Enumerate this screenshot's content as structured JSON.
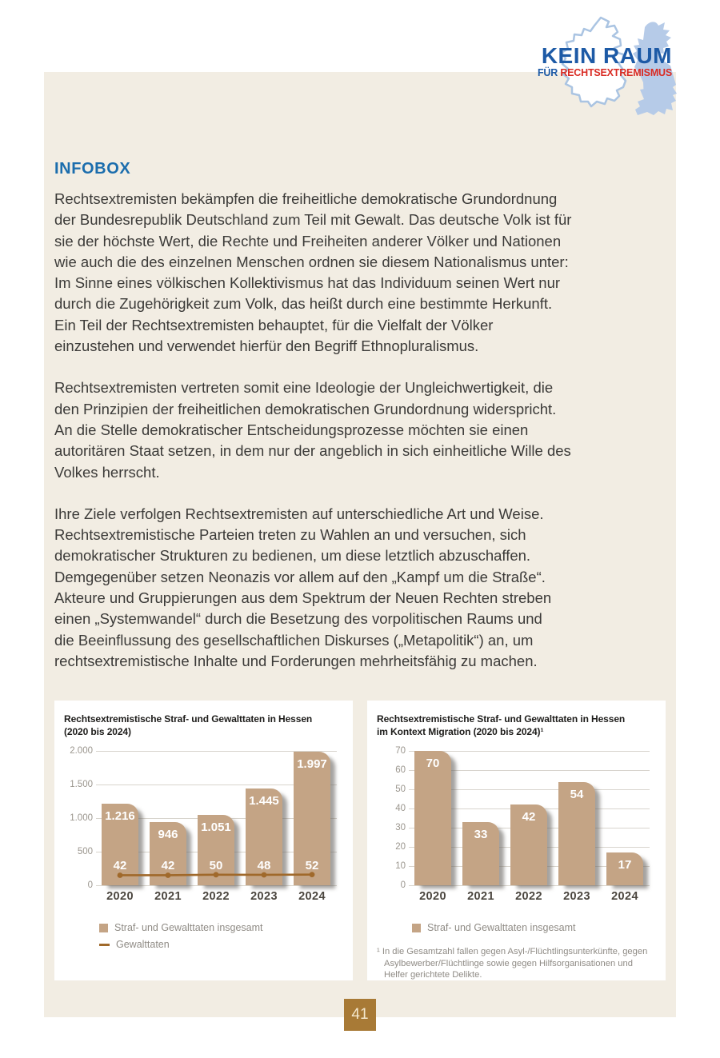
{
  "logo": {
    "line1": "KEIN RAUM",
    "line2_prefix": "FÜR",
    "line2_main": "RECHTSEXTREMISMUS"
  },
  "infobox": {
    "title": "INFOBOX",
    "paragraphs": {
      "p1": "Rechtsextremisten bekämpfen die freiheitliche demokratische Grundordnung\nder Bundesrepublik Deutschland zum Teil mit Gewalt. Das deutsche Volk ist für\nsie der höchste Wert, die Rechte und Freiheiten anderer Völker und Nationen\nwie auch die des einzelnen Menschen ordnen sie diesem Nationalismus unter:\nIm Sinne eines völkischen Kollektivismus hat das Individuum seinen Wert nur\ndurch die Zugehörigkeit zum Volk, das heißt durch eine bestimmte Herkunft.\nEin Teil der Rechtsextremisten behauptet, für die Vielfalt der Völker\neinzustehen und verwendet hierfür den Begriff Ethnopluralismus.",
      "p2": "Rechtsextremisten vertreten somit eine Ideologie der Ungleichwertigkeit, die\nden Prinzipien der freiheitlichen demokratischen Grundordnung widerspricht.\nAn die Stelle demokratischer Entscheidungsprozesse möchten sie einen\nautoritären Staat setzen, in dem nur der angeblich in sich einheitliche Wille des\nVolkes herrscht.",
      "p3": "Ihre Ziele verfolgen Rechtsextremisten auf unterschiedliche Art und Weise.\nRechtsextremistische Parteien treten zu Wahlen an und versuchen, sich\ndemokratischer Strukturen zu bedienen, um diese letztlich abzuschaffen.\nDemgegenüber setzen Neonazis vor allem auf den „Kampf um die Straße“.\nAkteure und Gruppierungen aus dem Spektrum der Neuen Rechten streben\neinen „Systemwandel“ durch die Besetzung des vorpolitischen Raums und\ndie Beeinflussung des gesellschaftlichen Diskurses („Metapolitik“) an, um\nrechtsextremistische Inhalte und Forderungen mehrheitsfähig zu machen."
    }
  },
  "chart_data": [
    {
      "type": "bar",
      "title": "Rechtsextremistische Straf- und Gewalttaten in Hessen\n(2020 bis 2024)",
      "categories": [
        "2020",
        "2021",
        "2022",
        "2023",
        "2024"
      ],
      "series": [
        {
          "name": "Straf- und Gewalttaten insgesamt",
          "type": "bar",
          "values": [
            1216,
            946,
            1051,
            1445,
            1997
          ],
          "labels": [
            "1.216",
            "946",
            "1.051",
            "1.445",
            "1.997"
          ]
        },
        {
          "name": "Gewalttaten",
          "type": "line",
          "values": [
            42,
            42,
            50,
            48,
            52
          ],
          "labels": [
            "42",
            "42",
            "50",
            "48",
            "52"
          ]
        }
      ],
      "ylim": [
        0,
        2000
      ],
      "yticks": [
        0,
        500,
        1000,
        1500,
        2000
      ],
      "ytick_labels": [
        "0",
        "500",
        "1.000",
        "1.500",
        "2.000"
      ],
      "xlabel": "",
      "ylabel": "",
      "grid": true,
      "legend_position": "bottom"
    },
    {
      "type": "bar",
      "title": "Rechtsextremistische Straf- und Gewalttaten in Hessen\nim Kontext Migration (2020 bis 2024)¹",
      "categories": [
        "2020",
        "2021",
        "2022",
        "2023",
        "2024"
      ],
      "series": [
        {
          "name": "Straf- und Gewalttaten insgesamt",
          "type": "bar",
          "values": [
            70,
            33,
            42,
            54,
            17
          ],
          "labels": [
            "70",
            "33",
            "42",
            "54",
            "17"
          ]
        }
      ],
      "ylim": [
        0,
        70
      ],
      "yticks": [
        0,
        10,
        20,
        30,
        40,
        50,
        60,
        70
      ],
      "ytick_labels": [
        "0",
        "10",
        "20",
        "30",
        "40",
        "50",
        "60",
        "70"
      ],
      "xlabel": "",
      "ylabel": "",
      "grid": true,
      "legend_position": "bottom",
      "footnote": "¹ In die Gesamtzahl fallen gegen Asyl-/Flüchtlingsunterkünfte, gegen\nAsylbewerber/Flüchtlinge sowie gegen Hilfsorganisationen und\nHelfer gerichtete Delikte."
    }
  ],
  "page_number": "41",
  "colors": {
    "accent_blue": "#1b6dad",
    "logo_blue": "#1d5aa6",
    "logo_red": "#d92b23",
    "logo_map": "#aac4e2",
    "infobox_bg": "#f2ede3",
    "bar": "#c4a485",
    "line": "#a0692b",
    "badge": "#a87a36",
    "body_text": "#3b3a38"
  }
}
